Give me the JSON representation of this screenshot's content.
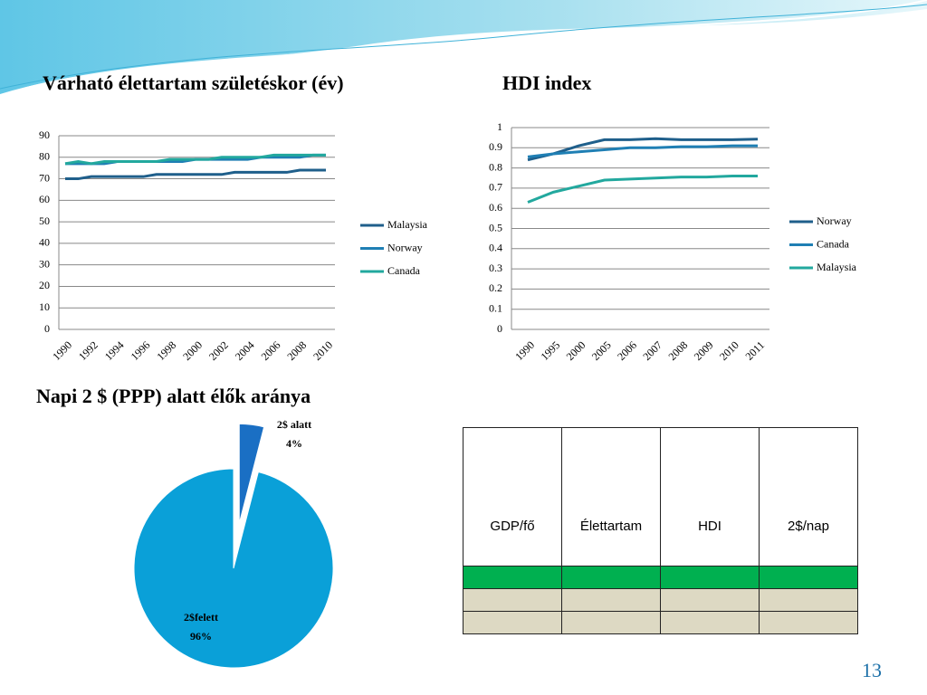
{
  "chart_data": [
    {
      "type": "line",
      "title": "Várható élettartam születéskor (év)",
      "categories": [
        "1990",
        null,
        "1992",
        null,
        "1994",
        null,
        "1996",
        null,
        "1998",
        null,
        "2000",
        null,
        "2002",
        null,
        "2004",
        null,
        "2006",
        null,
        "2008",
        null,
        "2010"
      ],
      "series": [
        {
          "name": "Malaysia",
          "color": "#1f5f8b",
          "values": [
            70,
            70,
            71,
            71,
            71,
            71,
            71,
            72,
            72,
            72,
            72,
            72,
            72,
            73,
            73,
            73,
            73,
            73,
            74,
            74,
            74
          ]
        },
        {
          "name": "Norway",
          "color": "#1f7fb4",
          "values": [
            77,
            77,
            77,
            77,
            78,
            78,
            78,
            78,
            78,
            78,
            79,
            79,
            79,
            79,
            79,
            80,
            80,
            80,
            80,
            81,
            81
          ]
        },
        {
          "name": "Canada",
          "color": "#22a89e",
          "values": [
            77,
            78,
            77,
            78,
            78,
            78,
            78,
            78,
            79,
            79,
            79,
            79,
            80,
            80,
            80,
            80,
            81,
            81,
            81,
            81,
            81
          ]
        }
      ],
      "ylim": [
        0,
        90
      ],
      "yticks": [
        0,
        10,
        20,
        30,
        40,
        50,
        60,
        70,
        80,
        90
      ],
      "grid": true,
      "legend": "right"
    },
    {
      "type": "line",
      "title": "HDI index",
      "categories": [
        "1990",
        "1995",
        "2000",
        "2005",
        "2006",
        "2007",
        "2008",
        "2009",
        "2010",
        "2011"
      ],
      "series": [
        {
          "name": "Norway",
          "color": "#1f5f8b",
          "values": [
            0.84,
            0.87,
            0.91,
            0.94,
            0.94,
            0.945,
            0.94,
            0.94,
            0.94,
            0.943
          ]
        },
        {
          "name": "Canada",
          "color": "#1f7fb4",
          "values": [
            0.855,
            0.87,
            0.88,
            0.89,
            0.9,
            0.9,
            0.905,
            0.905,
            0.91,
            0.91
          ]
        },
        {
          "name": "Malaysia",
          "color": "#22a89e",
          "values": [
            0.63,
            0.68,
            0.71,
            0.74,
            0.745,
            0.75,
            0.755,
            0.755,
            0.76,
            0.76
          ]
        }
      ],
      "ylim": [
        0,
        1
      ],
      "yticks": [
        0,
        0.1,
        0.2,
        0.3,
        0.4,
        0.5,
        0.6,
        0.7,
        0.8,
        0.9,
        1
      ],
      "grid": true,
      "legend": "right"
    },
    {
      "type": "pie",
      "title": "Napi 2 $ (PPP) alatt élők aránya",
      "categories": [
        "2$ alatt",
        "2$felett"
      ],
      "values": [
        4,
        96
      ],
      "value_labels": [
        "4%",
        "96%"
      ],
      "colors": [
        "#1a6fc4",
        "#0aa0d8"
      ]
    }
  ],
  "table": {
    "header": [
      "GDP/fő",
      "Élettartam",
      "HDI",
      "2$/nap"
    ]
  },
  "page_number": "13"
}
